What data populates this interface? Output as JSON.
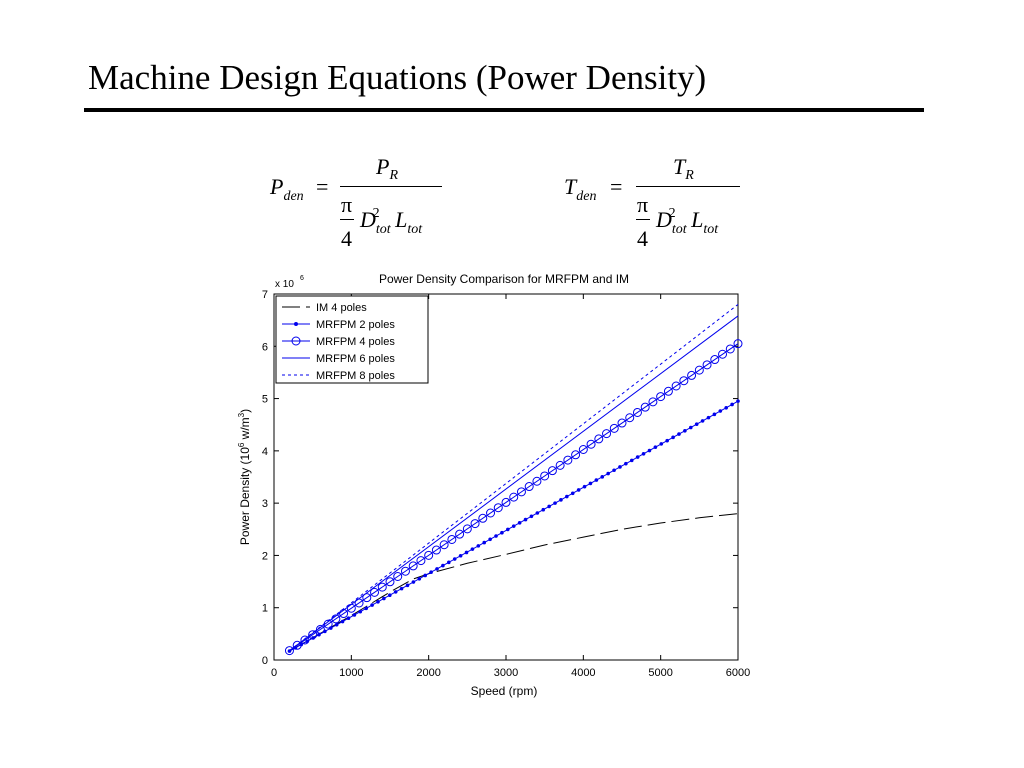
{
  "slide": {
    "title": "Machine Design Equations (Power Density)"
  },
  "equations": [
    {
      "lhs_symbol": "P",
      "lhs_sub": "den",
      "equals": "=",
      "num_symbol": "P",
      "num_sub": "R",
      "pi": "π",
      "four": "4",
      "d_symbol": "D",
      "d_sup": "2",
      "d_sub": "tot",
      "l_symbol": "L",
      "l_sub": "tot"
    },
    {
      "lhs_symbol": "T",
      "lhs_sub": "den",
      "equals": "=",
      "num_symbol": "T",
      "num_sub": "R",
      "pi": "π",
      "four": "4",
      "d_symbol": "D",
      "d_sup": "2",
      "d_sub": "tot",
      "l_symbol": "L",
      "l_sub": "tot"
    }
  ],
  "chart_data": {
    "type": "line",
    "title": "Power Density Comparison for MRFPM and IM",
    "xlabel": "Speed (rpm)",
    "ylabel_main": "Power Density (10",
    "ylabel_sup1": "6",
    "ylabel_mid": " w/m",
    "ylabel_sup2": "3",
    "ylabel_end": ")",
    "y_multiplier_base": "x 10",
    "y_multiplier_exp": "6",
    "xlim": [
      0,
      6000
    ],
    "ylim": [
      0,
      7
    ],
    "x_ticks": [
      0,
      1000,
      2000,
      3000,
      4000,
      5000,
      6000
    ],
    "y_ticks": [
      0,
      1,
      2,
      3,
      4,
      5,
      6,
      7
    ],
    "legend_position": "top-left",
    "grid": false,
    "series": [
      {
        "name": "IM 4 poles",
        "color": "#000000",
        "style": "dashed",
        "marker": "none",
        "x": [
          200,
          1000,
          1500,
          1800,
          2000,
          2500,
          3000,
          3500,
          4000,
          4500,
          5000,
          5500,
          6000
        ],
        "y": [
          0.17,
          0.85,
          1.3,
          1.55,
          1.65,
          1.85,
          2.02,
          2.2,
          2.35,
          2.5,
          2.62,
          2.72,
          2.8
        ]
      },
      {
        "name": "MRFPM 2 poles",
        "color": "#0000ee",
        "style": "solid",
        "marker": "dot",
        "x": [
          200,
          6000
        ],
        "y": [
          0.17,
          4.95
        ]
      },
      {
        "name": "MRFPM 4 poles",
        "color": "#0000ee",
        "style": "solid",
        "marker": "circle",
        "x": [
          200,
          6000
        ],
        "y": [
          0.18,
          6.05
        ]
      },
      {
        "name": "MRFPM 6 poles",
        "color": "#0000ee",
        "style": "solid",
        "marker": "none",
        "x": [
          200,
          6000
        ],
        "y": [
          0.18,
          6.58
        ]
      },
      {
        "name": "MRFPM 8 poles",
        "color": "#0000ee",
        "style": "dotted",
        "marker": "none",
        "x": [
          200,
          6000
        ],
        "y": [
          0.18,
          6.8
        ]
      }
    ]
  }
}
